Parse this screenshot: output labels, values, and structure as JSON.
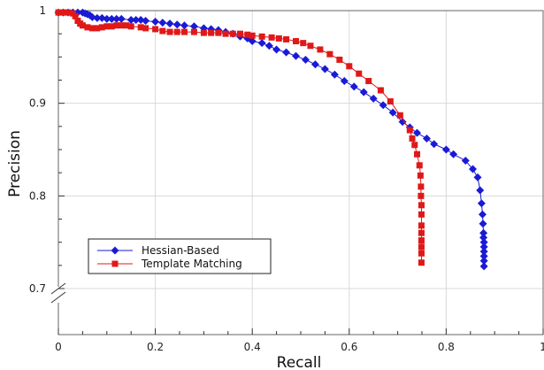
{
  "chart_data": {
    "type": "line",
    "xlabel": "Recall",
    "ylabel": "Precision",
    "xlim": [
      0,
      1
    ],
    "ylim": [
      0.7,
      1
    ],
    "axis_break": "y",
    "grid": true,
    "legend_position": "lower-left",
    "x_tick_labels": [
      "0",
      "0.2",
      "0.4",
      "0.6",
      "0.8",
      "1"
    ],
    "y_tick_labels": [
      "0.7",
      "0.8",
      "0.9",
      "1"
    ],
    "series": [
      {
        "name": "Hessian-Based",
        "color": "#1a1ad6",
        "marker": "diamond",
        "x": [
          0.0,
          0.01,
          0.02,
          0.03,
          0.04,
          0.05,
          0.055,
          0.06,
          0.065,
          0.07,
          0.08,
          0.09,
          0.1,
          0.11,
          0.12,
          0.13,
          0.15,
          0.16,
          0.17,
          0.18,
          0.2,
          0.215,
          0.23,
          0.245,
          0.26,
          0.28,
          0.3,
          0.315,
          0.33,
          0.345,
          0.36,
          0.375,
          0.39,
          0.4,
          0.42,
          0.435,
          0.45,
          0.47,
          0.49,
          0.51,
          0.53,
          0.55,
          0.57,
          0.59,
          0.61,
          0.63,
          0.65,
          0.67,
          0.69,
          0.71,
          0.725,
          0.74,
          0.76,
          0.775,
          0.8,
          0.815,
          0.84,
          0.855,
          0.865,
          0.87,
          0.873,
          0.875,
          0.876,
          0.877,
          0.877,
          0.878,
          0.878,
          0.878,
          0.878,
          0.878,
          0.878
        ],
        "y": [
          0.998,
          0.998,
          0.998,
          0.998,
          0.998,
          0.998,
          0.997,
          0.996,
          0.995,
          0.993,
          0.992,
          0.992,
          0.991,
          0.991,
          0.991,
          0.991,
          0.99,
          0.99,
          0.99,
          0.989,
          0.988,
          0.987,
          0.986,
          0.985,
          0.984,
          0.983,
          0.981,
          0.98,
          0.979,
          0.977,
          0.975,
          0.972,
          0.97,
          0.967,
          0.965,
          0.962,
          0.958,
          0.955,
          0.951,
          0.947,
          0.942,
          0.937,
          0.931,
          0.924,
          0.918,
          0.912,
          0.905,
          0.898,
          0.89,
          0.88,
          0.874,
          0.868,
          0.862,
          0.856,
          0.85,
          0.845,
          0.838,
          0.829,
          0.82,
          0.806,
          0.792,
          0.78,
          0.77,
          0.76,
          0.755,
          0.75,
          0.745,
          0.74,
          0.735,
          0.73,
          0.724
        ]
      },
      {
        "name": "Template Matching",
        "color": "#e01818",
        "marker": "square",
        "x": [
          0.0,
          0.01,
          0.02,
          0.03,
          0.035,
          0.04,
          0.045,
          0.05,
          0.06,
          0.07,
          0.08,
          0.09,
          0.1,
          0.11,
          0.12,
          0.13,
          0.14,
          0.15,
          0.17,
          0.18,
          0.2,
          0.215,
          0.23,
          0.245,
          0.26,
          0.28,
          0.3,
          0.315,
          0.33,
          0.345,
          0.36,
          0.375,
          0.39,
          0.4,
          0.42,
          0.44,
          0.455,
          0.47,
          0.49,
          0.505,
          0.52,
          0.54,
          0.56,
          0.58,
          0.6,
          0.62,
          0.64,
          0.665,
          0.685,
          0.705,
          0.725,
          0.73,
          0.735,
          0.74,
          0.745,
          0.747,
          0.748,
          0.748,
          0.749,
          0.749,
          0.749,
          0.749,
          0.749,
          0.749,
          0.749,
          0.749
        ],
        "y": [
          0.998,
          0.998,
          0.998,
          0.997,
          0.994,
          0.989,
          0.986,
          0.984,
          0.982,
          0.981,
          0.981,
          0.982,
          0.983,
          0.983,
          0.984,
          0.984,
          0.984,
          0.983,
          0.982,
          0.981,
          0.98,
          0.978,
          0.977,
          0.977,
          0.977,
          0.977,
          0.976,
          0.976,
          0.976,
          0.975,
          0.975,
          0.975,
          0.974,
          0.973,
          0.972,
          0.971,
          0.97,
          0.969,
          0.967,
          0.965,
          0.962,
          0.958,
          0.953,
          0.947,
          0.94,
          0.932,
          0.924,
          0.914,
          0.902,
          0.887,
          0.871,
          0.862,
          0.855,
          0.845,
          0.833,
          0.822,
          0.81,
          0.8,
          0.79,
          0.78,
          0.768,
          0.76,
          0.752,
          0.745,
          0.738,
          0.728
        ]
      }
    ]
  }
}
